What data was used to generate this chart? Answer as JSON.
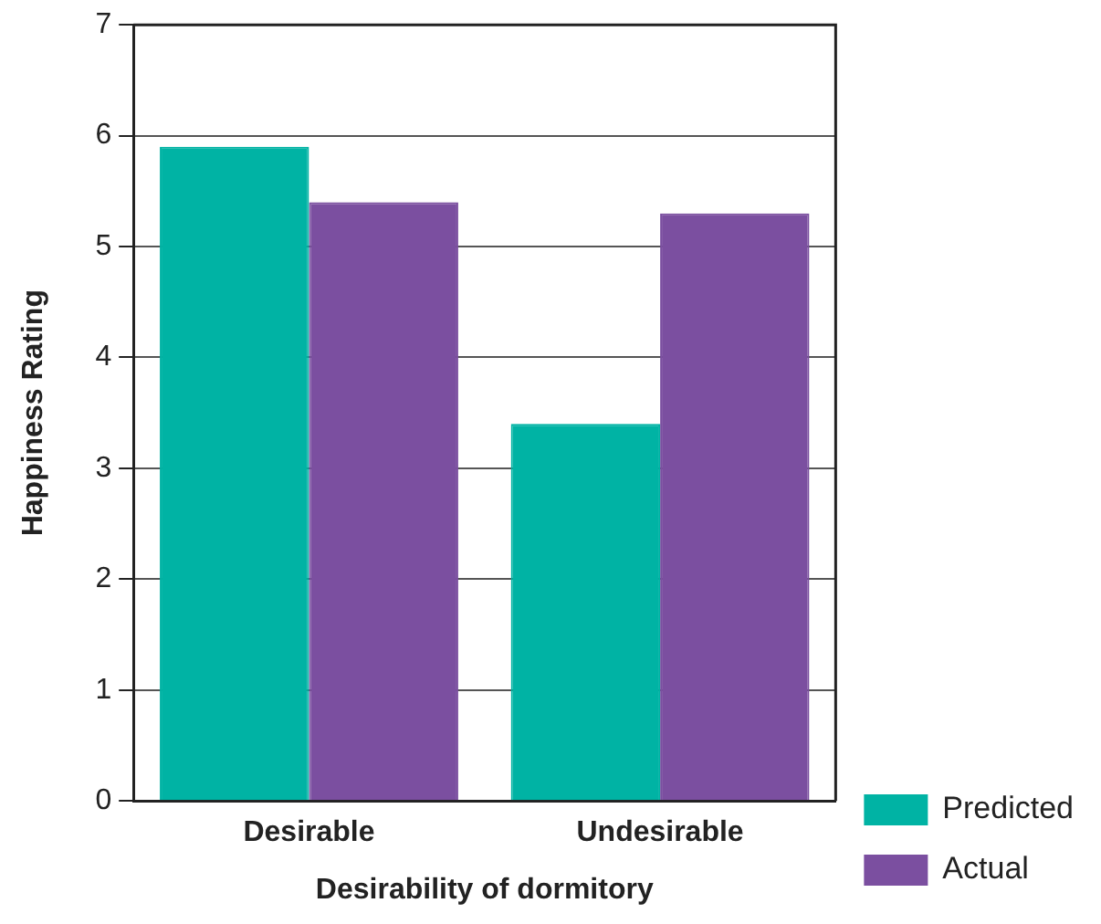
{
  "chart_data": {
    "type": "bar",
    "xlabel": "Desirability of dormitory",
    "ylabel": "Happiness Rating",
    "categories": [
      "Desirable",
      "Undesirable"
    ],
    "series": [
      {
        "name": "Predicted",
        "color": "#00b3a4",
        "values": [
          5.9,
          3.4
        ]
      },
      {
        "name": "Actual",
        "color": "#7b4fa0",
        "values": [
          5.4,
          5.3
        ]
      }
    ],
    "ylim": [
      0,
      7
    ],
    "yticks": [
      0,
      1,
      2,
      3,
      4,
      5,
      6,
      7
    ],
    "grid": "y",
    "legend": "bottom right"
  }
}
